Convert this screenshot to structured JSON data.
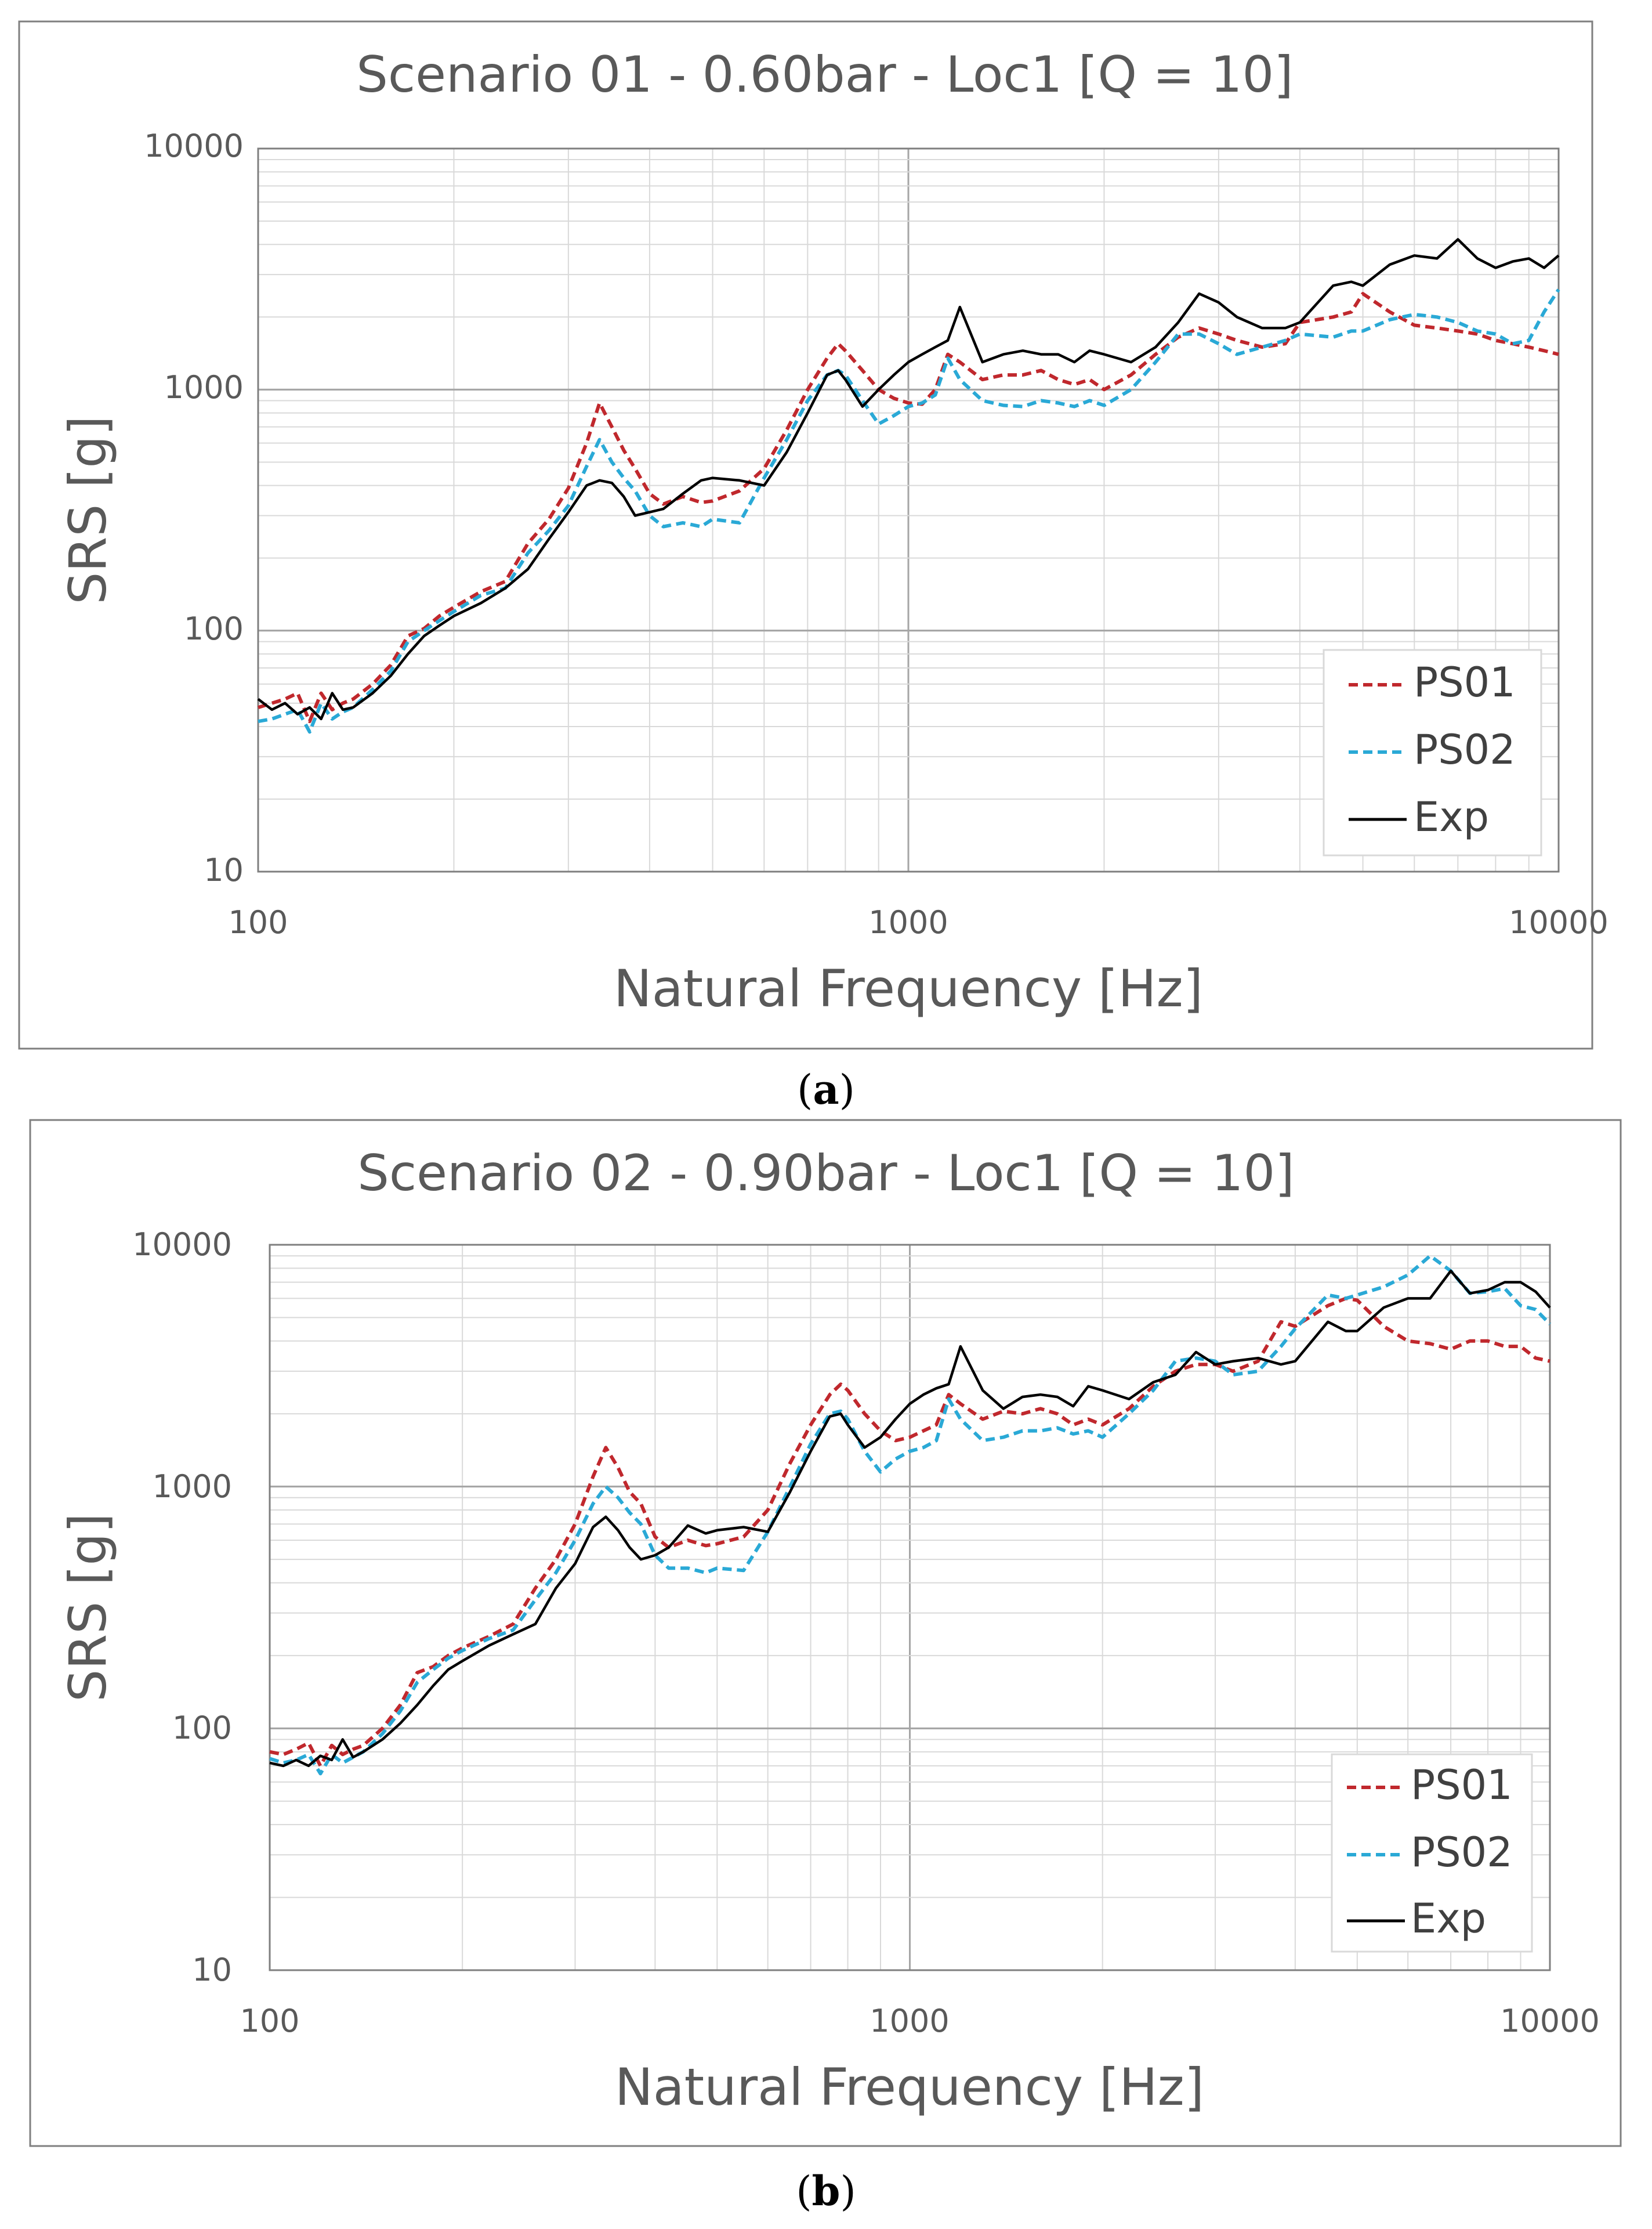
{
  "panels": [
    {
      "label": "(a)",
      "label_open": "(",
      "label_letter": "a",
      "label_close": ")"
    },
    {
      "label": "(b)",
      "label_open": "(",
      "label_letter": "b",
      "label_close": ")"
    }
  ],
  "colors": {
    "PS01": "#c0282d",
    "PS02": "#2aa9d6",
    "Exp": "#000000",
    "grid_major": "#a6a6a6",
    "grid_minor": "#d9d9d9",
    "frame": "#7f7f7f"
  },
  "chart_data": [
    {
      "type": "line",
      "title": "Scenario 01 - 0.60bar - Loc1 [Q = 10]",
      "xlabel": "Natural Frequency [Hz]",
      "ylabel": "SRS [g]",
      "xscale": "log",
      "yscale": "log",
      "xlim": [
        100,
        10000
      ],
      "ylim": [
        10,
        10000
      ],
      "xticks": [
        "100",
        "1000",
        "10000"
      ],
      "yticks": [
        "10",
        "100",
        "1000",
        "10000"
      ],
      "grid": true,
      "legend": "bottom-right",
      "series": [
        {
          "name": "PS01",
          "style": "dashed",
          "x": [
            100,
            105,
            110,
            115,
            120,
            125,
            130,
            135,
            140,
            150,
            160,
            170,
            180,
            190,
            200,
            220,
            240,
            260,
            280,
            300,
            320,
            335,
            350,
            365,
            380,
            400,
            420,
            450,
            480,
            500,
            550,
            600,
            650,
            700,
            750,
            780,
            800,
            850,
            900,
            950,
            1000,
            1050,
            1100,
            1150,
            1200,
            1300,
            1400,
            1500,
            1600,
            1700,
            1800,
            1900,
            2000,
            2200,
            2400,
            2600,
            2800,
            3000,
            3200,
            3500,
            3800,
            4000,
            4500,
            4800,
            5000,
            5500,
            6000,
            6500,
            7000,
            7500,
            8000,
            8500,
            9000,
            9500,
            10000
          ],
          "y": [
            48,
            50,
            52,
            55,
            42,
            55,
            47,
            50,
            52,
            60,
            72,
            95,
            102,
            115,
            125,
            145,
            160,
            230,
            290,
            390,
            600,
            880,
            700,
            560,
            470,
            370,
            335,
            360,
            340,
            345,
            380,
            470,
            680,
            1000,
            1350,
            1550,
            1450,
            1200,
            1000,
            920,
            880,
            870,
            1000,
            1400,
            1300,
            1100,
            1150,
            1150,
            1200,
            1100,
            1050,
            1100,
            1000,
            1150,
            1400,
            1650,
            1800,
            1700,
            1600,
            1500,
            1550,
            1900,
            2000,
            2100,
            2500,
            2100,
            1850,
            1800,
            1750,
            1700,
            1600,
            1550,
            1500,
            1450,
            1400
          ]
        },
        {
          "name": "PS02",
          "style": "dashed",
          "x": [
            100,
            105,
            110,
            115,
            120,
            125,
            130,
            135,
            140,
            150,
            160,
            170,
            180,
            190,
            200,
            220,
            240,
            260,
            280,
            300,
            320,
            335,
            350,
            365,
            380,
            400,
            420,
            450,
            480,
            500,
            550,
            600,
            650,
            700,
            750,
            780,
            800,
            850,
            900,
            950,
            1000,
            1050,
            1100,
            1150,
            1200,
            1300,
            1400,
            1500,
            1600,
            1700,
            1800,
            1900,
            2000,
            2200,
            2400,
            2600,
            2800,
            3000,
            3200,
            3500,
            3800,
            4000,
            4500,
            4800,
            5000,
            5500,
            6000,
            6500,
            7000,
            7500,
            8000,
            8500,
            9000,
            9500,
            10000
          ],
          "y": [
            42,
            43,
            45,
            47,
            38,
            50,
            43,
            46,
            48,
            57,
            68,
            90,
            100,
            110,
            120,
            140,
            150,
            210,
            260,
            330,
            480,
            620,
            500,
            430,
            380,
            300,
            270,
            280,
            270,
            290,
            280,
            430,
            620,
            900,
            1150,
            1200,
            1150,
            900,
            720,
            780,
            850,
            880,
            950,
            1350,
            1100,
            900,
            860,
            850,
            900,
            880,
            850,
            900,
            860,
            1000,
            1300,
            1700,
            1700,
            1550,
            1400,
            1500,
            1600,
            1700,
            1650,
            1750,
            1750,
            1950,
            2050,
            2000,
            1900,
            1750,
            1700,
            1550,
            1600,
            2100,
            2600
          ]
        },
        {
          "name": "Exp",
          "style": "solid",
          "x": [
            100,
            105,
            110,
            115,
            120,
            125,
            130,
            135,
            140,
            150,
            160,
            170,
            180,
            190,
            200,
            220,
            240,
            260,
            280,
            300,
            320,
            335,
            350,
            365,
            380,
            400,
            420,
            450,
            480,
            500,
            550,
            600,
            650,
            700,
            750,
            780,
            800,
            850,
            900,
            950,
            1000,
            1050,
            1100,
            1150,
            1200,
            1300,
            1400,
            1500,
            1600,
            1700,
            1800,
            1900,
            2000,
            2200,
            2400,
            2600,
            2800,
            3000,
            3200,
            3500,
            3800,
            4000,
            4500,
            4800,
            5000,
            5500,
            6000,
            6500,
            7000,
            7500,
            8000,
            8500,
            9000,
            9500,
            10000
          ],
          "y": [
            52,
            47,
            50,
            45,
            48,
            43,
            55,
            47,
            48,
            55,
            65,
            80,
            95,
            105,
            115,
            130,
            150,
            180,
            240,
            310,
            400,
            420,
            410,
            360,
            300,
            310,
            320,
            370,
            420,
            430,
            420,
            400,
            550,
            800,
            1150,
            1200,
            1100,
            850,
            1000,
            1150,
            1300,
            1400,
            1500,
            1600,
            2200,
            1300,
            1400,
            1450,
            1400,
            1400,
            1300,
            1450,
            1400,
            1300,
            1500,
            1900,
            2500,
            2300,
            2000,
            1800,
            1800,
            1900,
            2700,
            2800,
            2700,
            3300,
            3600,
            3500,
            4200,
            3500,
            3200,
            3400,
            3500,
            3200,
            3600
          ]
        }
      ]
    },
    {
      "type": "line",
      "title": "Scenario 02 - 0.90bar - Loc1 [Q = 10]",
      "xlabel": "Natural Frequency [Hz]",
      "ylabel": "SRS [g]",
      "xscale": "log",
      "yscale": "log",
      "xlim": [
        100,
        10000
      ],
      "ylim": [
        10,
        10000
      ],
      "xticks": [
        "100",
        "1000",
        "10000"
      ],
      "yticks": [
        "10",
        "100",
        "1000",
        "10000"
      ],
      "grid": true,
      "legend": "bottom-right",
      "series": [
        {
          "name": "PS01",
          "style": "dashed",
          "x": [
            100,
            105,
            110,
            115,
            120,
            125,
            130,
            135,
            140,
            150,
            160,
            170,
            180,
            190,
            200,
            220,
            240,
            260,
            280,
            300,
            320,
            335,
            350,
            365,
            380,
            400,
            420,
            450,
            480,
            500,
            550,
            600,
            650,
            700,
            750,
            780,
            800,
            850,
            900,
            950,
            1000,
            1050,
            1100,
            1150,
            1200,
            1300,
            1400,
            1500,
            1600,
            1700,
            1800,
            1900,
            2000,
            2200,
            2400,
            2600,
            2800,
            3000,
            3200,
            3500,
            3800,
            4000,
            4500,
            4800,
            5000,
            5500,
            6000,
            6500,
            7000,
            7500,
            8000,
            8500,
            9000,
            9500,
            10000
          ],
          "y": [
            80,
            78,
            82,
            87,
            70,
            85,
            78,
            82,
            85,
            100,
            125,
            170,
            180,
            200,
            215,
            240,
            270,
            380,
            500,
            700,
            1100,
            1450,
            1200,
            950,
            850,
            620,
            560,
            600,
            570,
            580,
            620,
            800,
            1250,
            1800,
            2400,
            2650,
            2500,
            2000,
            1700,
            1550,
            1600,
            1700,
            1800,
            2400,
            2200,
            1900,
            2050,
            2000,
            2100,
            2000,
            1800,
            1900,
            1800,
            2100,
            2600,
            3000,
            3200,
            3200,
            3000,
            3300,
            4800,
            4600,
            5600,
            6000,
            5900,
            4600,
            4000,
            3900,
            3700,
            4000,
            4000,
            3800,
            3800,
            3400,
            3300
          ]
        },
        {
          "name": "PS02",
          "style": "dashed",
          "x": [
            100,
            105,
            110,
            115,
            120,
            125,
            130,
            135,
            140,
            150,
            160,
            170,
            180,
            190,
            200,
            220,
            240,
            260,
            280,
            300,
            320,
            335,
            350,
            365,
            380,
            400,
            420,
            450,
            480,
            500,
            550,
            600,
            650,
            700,
            750,
            780,
            800,
            850,
            900,
            950,
            1000,
            1050,
            1100,
            1150,
            1200,
            1300,
            1400,
            1500,
            1600,
            1700,
            1800,
            1900,
            2000,
            2200,
            2400,
            2600,
            2800,
            3000,
            3200,
            3500,
            3800,
            4000,
            4500,
            4800,
            5000,
            5500,
            6000,
            6500,
            7000,
            7500,
            8000,
            8500,
            9000,
            9500,
            10000
          ],
          "y": [
            75,
            72,
            74,
            78,
            65,
            78,
            72,
            76,
            80,
            95,
            118,
            155,
            175,
            195,
            210,
            235,
            255,
            340,
            440,
            600,
            850,
            1000,
            900,
            780,
            700,
            520,
            460,
            460,
            440,
            460,
            450,
            650,
            1000,
            1500,
            2000,
            2050,
            1900,
            1400,
            1150,
            1300,
            1400,
            1450,
            1550,
            2300,
            1900,
            1550,
            1600,
            1700,
            1700,
            1750,
            1650,
            1700,
            1600,
            2000,
            2500,
            3300,
            3400,
            3300,
            2900,
            3000,
            3800,
            4500,
            6200,
            6000,
            6200,
            6700,
            7500,
            9000,
            7800,
            6300,
            6400,
            6600,
            5600,
            5400,
            4700
          ]
        },
        {
          "name": "Exp",
          "style": "solid",
          "x": [
            100,
            105,
            110,
            115,
            120,
            125,
            130,
            135,
            140,
            150,
            160,
            170,
            180,
            190,
            200,
            220,
            240,
            260,
            280,
            300,
            320,
            335,
            350,
            365,
            380,
            400,
            420,
            450,
            480,
            500,
            550,
            600,
            650,
            700,
            750,
            780,
            800,
            850,
            900,
            950,
            1000,
            1050,
            1100,
            1150,
            1200,
            1300,
            1400,
            1500,
            1600,
            1700,
            1800,
            1900,
            2000,
            2200,
            2400,
            2600,
            2800,
            3000,
            3200,
            3500,
            3800,
            4000,
            4500,
            4800,
            5000,
            5500,
            6000,
            6500,
            7000,
            7500,
            8000,
            8500,
            9000,
            9500,
            10000
          ],
          "y": [
            72,
            70,
            74,
            70,
            77,
            74,
            90,
            76,
            80,
            90,
            105,
            125,
            150,
            175,
            190,
            220,
            245,
            270,
            380,
            480,
            680,
            750,
            660,
            560,
            500,
            520,
            560,
            690,
            640,
            660,
            680,
            650,
            950,
            1400,
            1950,
            2000,
            1800,
            1450,
            1600,
            1900,
            2200,
            2400,
            2550,
            2650,
            3800,
            2500,
            2100,
            2350,
            2400,
            2350,
            2150,
            2600,
            2500,
            2300,
            2700,
            2900,
            3600,
            3200,
            3300,
            3400,
            3200,
            3300,
            4800,
            4400,
            4400,
            5500,
            6000,
            6000,
            7800,
            6300,
            6500,
            7000,
            7000,
            6400,
            5500
          ]
        }
      ]
    }
  ]
}
